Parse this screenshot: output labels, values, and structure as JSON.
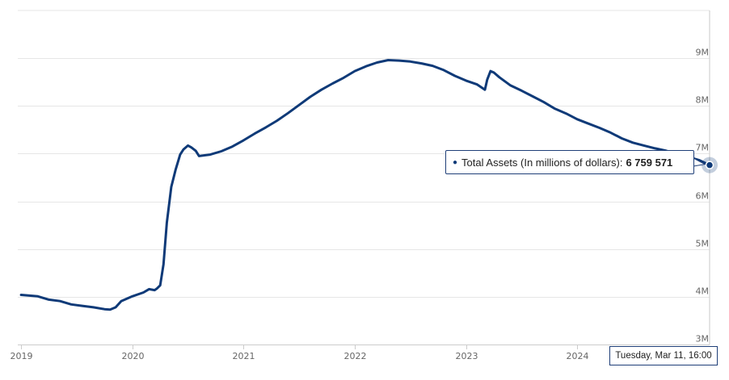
{
  "chart_data": {
    "type": "line",
    "series": [
      {
        "name": "Total Assets (In millions of dollars)",
        "color": "#0f3a78",
        "points": [
          [
            2019.0,
            4.04
          ],
          [
            2019.15,
            4.01
          ],
          [
            2019.25,
            3.94
          ],
          [
            2019.35,
            3.91
          ],
          [
            2019.45,
            3.84
          ],
          [
            2019.55,
            3.81
          ],
          [
            2019.65,
            3.78
          ],
          [
            2019.75,
            3.74
          ],
          [
            2019.8,
            3.73
          ],
          [
            2019.85,
            3.78
          ],
          [
            2019.9,
            3.91
          ],
          [
            2020.0,
            4.01
          ],
          [
            2020.1,
            4.09
          ],
          [
            2020.15,
            4.16
          ],
          [
            2020.2,
            4.14
          ],
          [
            2020.22,
            4.17
          ],
          [
            2020.25,
            4.24
          ],
          [
            2020.28,
            4.68
          ],
          [
            2020.31,
            5.55
          ],
          [
            2020.35,
            6.3
          ],
          [
            2020.39,
            6.67
          ],
          [
            2020.43,
            6.98
          ],
          [
            2020.46,
            7.09
          ],
          [
            2020.5,
            7.17
          ],
          [
            2020.53,
            7.13
          ],
          [
            2020.57,
            7.06
          ],
          [
            2020.6,
            6.95
          ],
          [
            2020.7,
            6.98
          ],
          [
            2020.8,
            7.05
          ],
          [
            2020.9,
            7.15
          ],
          [
            2021.0,
            7.28
          ],
          [
            2021.1,
            7.42
          ],
          [
            2021.2,
            7.55
          ],
          [
            2021.3,
            7.69
          ],
          [
            2021.4,
            7.85
          ],
          [
            2021.5,
            8.02
          ],
          [
            2021.6,
            8.19
          ],
          [
            2021.7,
            8.34
          ],
          [
            2021.8,
            8.47
          ],
          [
            2021.9,
            8.59
          ],
          [
            2022.0,
            8.73
          ],
          [
            2022.1,
            8.83
          ],
          [
            2022.2,
            8.91
          ],
          [
            2022.3,
            8.96
          ],
          [
            2022.4,
            8.95
          ],
          [
            2022.5,
            8.93
          ],
          [
            2022.6,
            8.89
          ],
          [
            2022.7,
            8.84
          ],
          [
            2022.8,
            8.75
          ],
          [
            2022.9,
            8.63
          ],
          [
            2023.0,
            8.53
          ],
          [
            2023.1,
            8.45
          ],
          [
            2023.17,
            8.34
          ],
          [
            2023.19,
            8.55
          ],
          [
            2023.22,
            8.73
          ],
          [
            2023.25,
            8.7
          ],
          [
            2023.3,
            8.6
          ],
          [
            2023.4,
            8.43
          ],
          [
            2023.5,
            8.32
          ],
          [
            2023.6,
            8.2
          ],
          [
            2023.7,
            8.08
          ],
          [
            2023.8,
            7.94
          ],
          [
            2023.9,
            7.84
          ],
          [
            2024.0,
            7.72
          ],
          [
            2024.1,
            7.63
          ],
          [
            2024.2,
            7.54
          ],
          [
            2024.3,
            7.44
          ],
          [
            2024.4,
            7.32
          ],
          [
            2024.5,
            7.23
          ],
          [
            2024.6,
            7.17
          ],
          [
            2024.7,
            7.11
          ],
          [
            2024.8,
            7.06
          ],
          [
            2024.9,
            7.0
          ],
          [
            2025.0,
            6.93
          ],
          [
            2025.1,
            6.86
          ],
          [
            2025.19,
            6.76
          ]
        ]
      }
    ],
    "xlim": [
      2018.97,
      2025.19
    ],
    "ylim": [
      3,
      10
    ],
    "y_ticks": [
      {
        "value": 3,
        "label": "3M"
      },
      {
        "value": 4,
        "label": "4M"
      },
      {
        "value": 5,
        "label": "5M"
      },
      {
        "value": 6,
        "label": "6M"
      },
      {
        "value": 7,
        "label": "7M"
      },
      {
        "value": 8,
        "label": "8M"
      },
      {
        "value": 9,
        "label": "9M"
      }
    ],
    "x_ticks": [
      {
        "value": 2019,
        "label": "2019"
      },
      {
        "value": 2020,
        "label": "2020"
      },
      {
        "value": 2021,
        "label": "2021"
      },
      {
        "value": 2022,
        "label": "2022"
      },
      {
        "value": 2023,
        "label": "2023"
      },
      {
        "value": 2024,
        "label": "2024"
      }
    ],
    "grid": "horizontal",
    "y_axis_side": "right",
    "hover_point": {
      "x": 2025.19,
      "y": 6.76
    }
  },
  "tooltip": {
    "series_label": "Total Assets (In millions of dollars):",
    "value": "6 759 571"
  },
  "crosshair_label": "Tuesday, Mar 11, 16:00"
}
